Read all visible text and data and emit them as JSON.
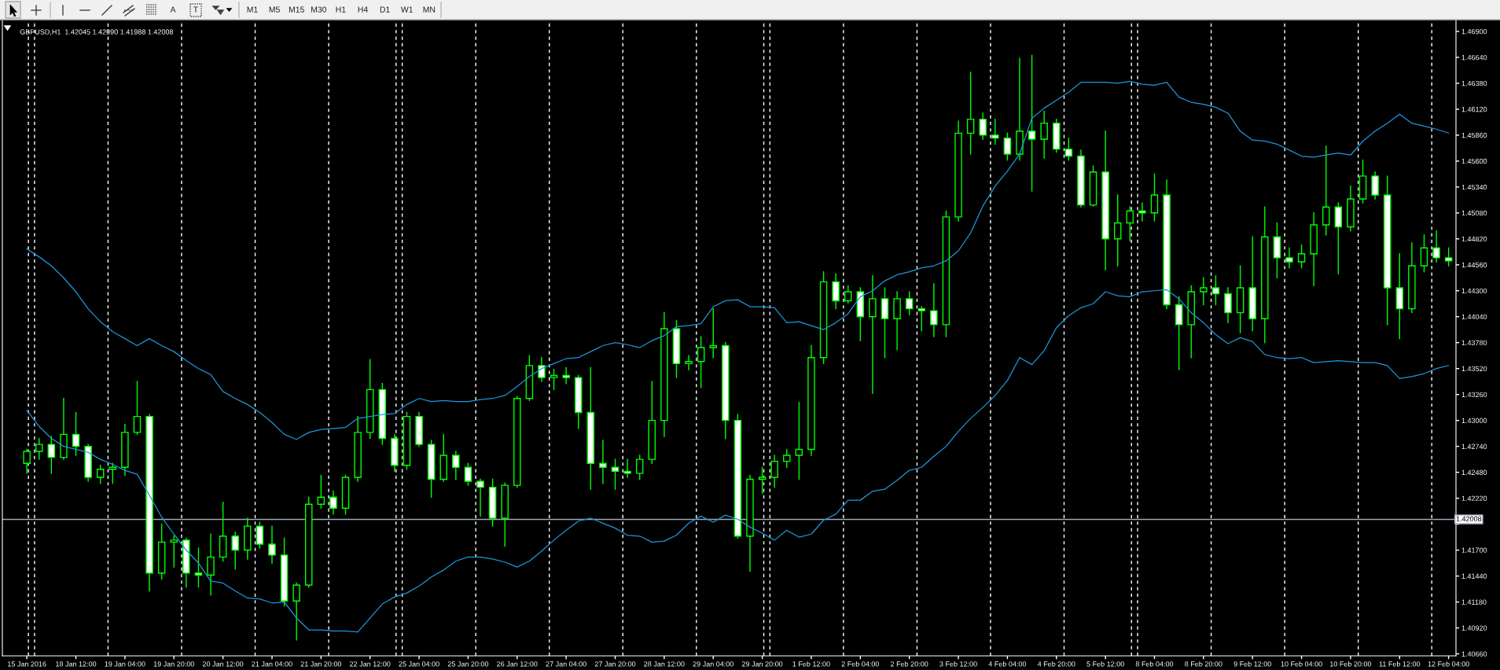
{
  "chart_data": {
    "type": "candlestick",
    "title": "GBPUSD,H1  1.42045 1.42090 1.41988 1.42008",
    "categories": [
      "15 Jan 2016",
      null,
      null,
      null,
      "18 Jan 12:00",
      null,
      null,
      null,
      "19 Jan 04:00",
      null,
      null,
      null,
      "19 Jan 20:00",
      null,
      null,
      null,
      "20 Jan 12:00",
      null,
      null,
      null,
      "21 Jan 04:00",
      null,
      null,
      null,
      "21 Jan 20:00",
      null,
      null,
      null,
      "22 Jan 12:00",
      null,
      null,
      null,
      "25 Jan 04:00",
      null,
      null,
      null,
      "25 Jan 20:00",
      null,
      null,
      null,
      "26 Jan 12:00",
      null,
      null,
      null,
      "27 Jan 04:00",
      null,
      null,
      null,
      "27 Jan 20:00",
      null,
      null,
      null,
      "28 Jan 12:00",
      null,
      null,
      null,
      "29 Jan 04:00",
      null,
      null,
      null,
      "29 Jan 20:00",
      null,
      null,
      null,
      "1 Feb 12:00",
      null,
      null,
      null,
      "2 Feb 04:00",
      null,
      null,
      null,
      "2 Feb 20:00",
      null,
      null,
      null,
      "3 Feb 12:00",
      null,
      null,
      null,
      "4 Feb 04:00",
      null,
      null,
      null,
      "4 Feb 20:00",
      null,
      null,
      null,
      "5 Feb 12:00",
      null,
      null,
      null,
      "8 Feb 04:00",
      null,
      null,
      null,
      "8 Feb 20:00",
      null,
      null,
      null,
      "9 Feb 12:00",
      null,
      null,
      null,
      "10 Feb 04:00",
      null,
      null,
      null,
      "10 Feb 20:00",
      null,
      null,
      null,
      "11 Feb 12:00",
      null,
      null,
      null,
      "12 Feb 04:00"
    ],
    "ohlc": [
      [
        1.4257,
        1.4271,
        1.4247,
        1.4269
      ],
      [
        1.4269,
        1.4282,
        1.4261,
        1.4276
      ],
      [
        1.4276,
        1.4284,
        1.4247,
        1.4263
      ],
      [
        1.4263,
        1.4322,
        1.4261,
        1.4286
      ],
      [
        1.4286,
        1.4308,
        1.4265,
        1.4274
      ],
      [
        1.4274,
        1.4276,
        1.4239,
        1.4243
      ],
      [
        1.4243,
        1.4255,
        1.4237,
        1.4251
      ],
      [
        1.4251,
        1.4257,
        1.4237,
        1.4253
      ],
      [
        1.4253,
        1.4296,
        1.4245,
        1.4288
      ],
      [
        1.4288,
        1.4339,
        1.4286,
        1.4304
      ],
      [
        1.4304,
        1.4306,
        1.4129,
        1.4147
      ],
      [
        1.4147,
        1.4196,
        1.4141,
        1.4178
      ],
      [
        1.4178,
        1.4184,
        1.4153,
        1.418
      ],
      [
        1.418,
        1.4182,
        1.4133,
        1.4147
      ],
      [
        1.4147,
        1.4172,
        1.4133,
        1.4145
      ],
      [
        1.4145,
        1.4186,
        1.4125,
        1.4163
      ],
      [
        1.4163,
        1.4218,
        1.4159,
        1.4184
      ],
      [
        1.4184,
        1.4188,
        1.4151,
        1.417
      ],
      [
        1.417,
        1.4202,
        1.4161,
        1.4194
      ],
      [
        1.4194,
        1.4198,
        1.4172,
        1.4176
      ],
      [
        1.4176,
        1.4194,
        1.4157,
        1.4165
      ],
      [
        1.4165,
        1.4182,
        1.4114,
        1.4119
      ],
      [
        1.4119,
        1.4137,
        1.408,
        1.4135
      ],
      [
        1.4135,
        1.4223,
        1.4133,
        1.4216
      ],
      [
        1.4216,
        1.4245,
        1.4212,
        1.4223
      ],
      [
        1.4223,
        1.4229,
        1.4206,
        1.4212
      ],
      [
        1.4212,
        1.4245,
        1.4206,
        1.4243
      ],
      [
        1.4243,
        1.4304,
        1.4239,
        1.4288
      ],
      [
        1.4288,
        1.4361,
        1.4282,
        1.4331
      ],
      [
        1.4331,
        1.4337,
        1.4276,
        1.4282
      ],
      [
        1.4282,
        1.4286,
        1.4249,
        1.4255
      ],
      [
        1.4255,
        1.4308,
        1.4251,
        1.4304
      ],
      [
        1.4304,
        1.4308,
        1.4274,
        1.4276
      ],
      [
        1.4276,
        1.428,
        1.4223,
        1.4241
      ],
      [
        1.4241,
        1.4286,
        1.4239,
        1.4265
      ],
      [
        1.4265,
        1.4269,
        1.4241,
        1.4253
      ],
      [
        1.4253,
        1.4257,
        1.4235,
        1.4239
      ],
      [
        1.4239,
        1.4241,
        1.4204,
        1.4233
      ],
      [
        1.4233,
        1.4241,
        1.4194,
        1.4202
      ],
      [
        1.4202,
        1.4237,
        1.4174,
        1.4235
      ],
      [
        1.4235,
        1.4324,
        1.4233,
        1.4322
      ],
      [
        1.4322,
        1.4365,
        1.432,
        1.4355
      ],
      [
        1.4355,
        1.4363,
        1.4339,
        1.4343
      ],
      [
        1.4343,
        1.4351,
        1.4331,
        1.4345
      ],
      [
        1.4345,
        1.4353,
        1.4337,
        1.4343
      ],
      [
        1.4343,
        1.4345,
        1.4292,
        1.4308
      ],
      [
        1.4308,
        1.4353,
        1.4231,
        1.4257
      ],
      [
        1.4257,
        1.428,
        1.4237,
        1.4253
      ],
      [
        1.4253,
        1.4261,
        1.4231,
        1.4249
      ],
      [
        1.4249,
        1.4261,
        1.4243,
        1.4247
      ],
      [
        1.4247,
        1.4265,
        1.4241,
        1.4261
      ],
      [
        1.4261,
        1.4339,
        1.4257,
        1.43
      ],
      [
        1.43,
        1.4408,
        1.4284,
        1.4392
      ],
      [
        1.4392,
        1.44,
        1.4343,
        1.4357
      ],
      [
        1.4357,
        1.4365,
        1.4351,
        1.4359
      ],
      [
        1.4359,
        1.4384,
        1.4333,
        1.4373
      ],
      [
        1.4373,
        1.4412,
        1.4363,
        1.4375
      ],
      [
        1.4375,
        1.4378,
        1.4282,
        1.43
      ],
      [
        1.43,
        1.4306,
        1.4182,
        1.4184
      ],
      [
        1.4184,
        1.4245,
        1.4149,
        1.4241
      ],
      [
        1.4241,
        1.4253,
        1.4227,
        1.4243
      ],
      [
        1.4243,
        1.4265,
        1.4233,
        1.4259
      ],
      [
        1.4259,
        1.4271,
        1.4253,
        1.4265
      ],
      [
        1.4265,
        1.4318,
        1.4241,
        1.4271
      ],
      [
        1.4271,
        1.4375,
        1.4265,
        1.4363
      ],
      [
        1.4363,
        1.4449,
        1.4357,
        1.4439
      ],
      [
        1.4439,
        1.4447,
        1.4412,
        1.442
      ],
      [
        1.442,
        1.4435,
        1.4418,
        1.4429
      ],
      [
        1.4429,
        1.4433,
        1.438,
        1.4404
      ],
      [
        1.4404,
        1.4445,
        1.4327,
        1.4422
      ],
      [
        1.4422,
        1.4433,
        1.4363,
        1.4402
      ],
      [
        1.4402,
        1.4429,
        1.4371,
        1.4422
      ],
      [
        1.4422,
        1.4429,
        1.4406,
        1.4412
      ],
      [
        1.4412,
        1.4414,
        1.439,
        1.441
      ],
      [
        1.441,
        1.4437,
        1.4384,
        1.4396
      ],
      [
        1.4396,
        1.451,
        1.4384,
        1.4504
      ],
      [
        1.4504,
        1.46,
        1.45,
        1.4588
      ],
      [
        1.4588,
        1.4649,
        1.4567,
        1.4602
      ],
      [
        1.4602,
        1.4608,
        1.4582,
        1.4586
      ],
      [
        1.4586,
        1.4602,
        1.4577,
        1.4583
      ],
      [
        1.4583,
        1.4588,
        1.4561,
        1.4567
      ],
      [
        1.4567,
        1.4663,
        1.4561,
        1.459
      ],
      [
        1.459,
        1.4666,
        1.453,
        1.4582
      ],
      [
        1.4582,
        1.461,
        1.4563,
        1.4598
      ],
      [
        1.4598,
        1.4602,
        1.4569,
        1.4572
      ],
      [
        1.4572,
        1.4583,
        1.4561,
        1.4565
      ],
      [
        1.4565,
        1.4571,
        1.4514,
        1.4516
      ],
      [
        1.4516,
        1.4555,
        1.4515,
        1.4549
      ],
      [
        1.4549,
        1.459,
        1.4451,
        1.4482
      ],
      [
        1.4482,
        1.4526,
        1.4455,
        1.4498
      ],
      [
        1.4498,
        1.4514,
        1.448,
        1.451
      ],
      [
        1.451,
        1.4518,
        1.45,
        1.4508
      ],
      [
        1.4508,
        1.4547,
        1.45,
        1.4526
      ],
      [
        1.4526,
        1.4541,
        1.4412,
        1.4416
      ],
      [
        1.4416,
        1.4424,
        1.4351,
        1.4396
      ],
      [
        1.4396,
        1.4435,
        1.4363,
        1.4429
      ],
      [
        1.4429,
        1.4443,
        1.4416,
        1.4433
      ],
      [
        1.4433,
        1.4445,
        1.4416,
        1.4427
      ],
      [
        1.4427,
        1.4433,
        1.4398,
        1.4408
      ],
      [
        1.4408,
        1.4455,
        1.4388,
        1.4433
      ],
      [
        1.4433,
        1.4484,
        1.439,
        1.4402
      ],
      [
        1.4402,
        1.4514,
        1.4378,
        1.4484
      ],
      [
        1.4484,
        1.4498,
        1.4443,
        1.4463
      ],
      [
        1.4463,
        1.4473,
        1.4453,
        1.4459
      ],
      [
        1.4459,
        1.4476,
        1.4453,
        1.4467
      ],
      [
        1.4467,
        1.4508,
        1.4435,
        1.4496
      ],
      [
        1.4496,
        1.4575,
        1.4486,
        1.4514
      ],
      [
        1.4514,
        1.4518,
        1.4447,
        1.4494
      ],
      [
        1.4494,
        1.4535,
        1.449,
        1.4522
      ],
      [
        1.4522,
        1.4561,
        1.4518,
        1.4545
      ],
      [
        1.4545,
        1.4549,
        1.4522,
        1.4526
      ],
      [
        1.4526,
        1.4545,
        1.4396,
        1.4433
      ],
      [
        1.4433,
        1.4467,
        1.4382,
        1.4412
      ],
      [
        1.4412,
        1.4478,
        1.4408,
        1.4455
      ],
      [
        1.4455,
        1.4486,
        1.4449,
        1.4473
      ],
      [
        1.4473,
        1.449,
        1.4459,
        1.4463
      ],
      [
        1.4463,
        1.4473,
        1.4455,
        1.446
      ]
    ],
    "color": "#00ff00",
    "colors": [
      "#000000",
      "#000000",
      "#ffffff",
      "#000000",
      "#ffffff",
      "#ffffff",
      "#000000",
      "#000000",
      "#000000",
      "#000000",
      "#ffffff",
      "#000000",
      "#000000",
      "#ffffff",
      "#ffffff",
      "#000000",
      "#000000",
      "#ffffff",
      "#000000",
      "#ffffff",
      "#ffffff",
      "#ffffff",
      "#000000",
      "#000000",
      "#000000",
      "#ffffff",
      "#000000",
      "#000000",
      "#000000",
      "#ffffff",
      "#ffffff",
      "#000000",
      "#ffffff",
      "#ffffff",
      "#000000",
      "#ffffff",
      "#ffffff",
      "#ffffff",
      "#ffffff",
      "#000000",
      "#000000",
      "#000000",
      "#ffffff",
      "#000000",
      "#ffffff",
      "#ffffff",
      "#ffffff",
      "#ffffff",
      "#ffffff",
      "#ffffff",
      "#000000",
      "#000000",
      "#000000",
      "#ffffff",
      "#000000",
      "#000000",
      "#000000",
      "#ffffff",
      "#ffffff",
      "#000000",
      "#000000",
      "#000000",
      "#000000",
      "#000000",
      "#000000",
      "#000000",
      "#ffffff",
      "#000000",
      "#ffffff",
      "#000000",
      "#ffffff",
      "#000000",
      "#ffffff",
      "#ffffff",
      "#ffffff",
      "#000000",
      "#000000",
      "#000000",
      "#ffffff",
      "#ffffff",
      "#ffffff",
      "#000000",
      "#ffffff",
      "#000000",
      "#ffffff",
      "#ffffff",
      "#ffffff",
      "#000000",
      "#ffffff",
      "#000000",
      "#000000",
      "#ffffff",
      "#000000",
      "#ffffff",
      "#ffffff",
      "#000000",
      "#000000",
      "#ffffff",
      "#ffffff",
      "#000000",
      "#ffffff",
      "#000000",
      "#ffffff",
      "#ffffff",
      "#000000",
      "#000000",
      "#000000",
      "#ffffff",
      "#000000",
      "#000000",
      "#ffffff",
      "#ffffff",
      "#ffffff",
      "#000000",
      "#000000",
      "#ffffff",
      "#ffffff"
    ],
    "series": [
      {
        "type": "line",
        "color": "#1e96dc",
        "values": [
          1.4472,
          1.4464,
          1.4455,
          1.4443,
          1.4429,
          1.4412,
          1.4399,
          1.4389,
          1.4382,
          1.4375,
          1.4382,
          1.4375,
          1.4369,
          1.436,
          1.4352,
          1.4346,
          1.4329,
          1.4322,
          1.4316,
          1.4308,
          1.4298,
          1.4286,
          1.4281,
          1.4288,
          1.4291,
          1.4292,
          1.4293,
          1.4302,
          1.4304,
          1.4306,
          1.4307,
          1.4316,
          1.4322,
          1.4319,
          1.432,
          1.4319,
          1.4319,
          1.4321,
          1.4322,
          1.4325,
          1.4334,
          1.4344,
          1.4352,
          1.4357,
          1.4362,
          1.4363,
          1.4369,
          1.4375,
          1.4378,
          1.4376,
          1.4373,
          1.438,
          1.4385,
          1.4394,
          1.4395,
          1.4397,
          1.4414,
          1.442,
          1.4421,
          1.4414,
          1.4414,
          1.4413,
          1.4398,
          1.4399,
          1.4395,
          1.4391,
          1.4398,
          1.4407,
          1.4424,
          1.443,
          1.444,
          1.4446,
          1.4449,
          1.4453,
          1.4455,
          1.446,
          1.447,
          1.4488,
          1.4515,
          1.4535,
          1.455,
          1.4567,
          1.4603,
          1.4613,
          1.4621,
          1.4629,
          1.4639,
          1.4639,
          1.4639,
          1.4638,
          1.464,
          1.4637,
          1.4636,
          1.4639,
          1.4624,
          1.4619,
          1.4617,
          1.4614,
          1.4608,
          1.459,
          1.4581,
          1.458,
          1.4577,
          1.4571,
          1.4565,
          1.4564,
          1.4566,
          1.4568,
          1.4566,
          1.458,
          1.459,
          1.4598,
          1.4607,
          1.4598,
          1.4595,
          1.4592,
          1.4588
        ]
      },
      {
        "type": "line",
        "color": "#1e96dc",
        "values": [
          1.431,
          1.4294,
          1.4282,
          1.4274,
          1.4271,
          1.4268,
          1.4261,
          1.4256,
          1.425,
          1.4246,
          1.4225,
          1.4203,
          1.4186,
          1.417,
          1.4157,
          1.4139,
          1.4137,
          1.4129,
          1.4122,
          1.4121,
          1.4117,
          1.4118,
          1.4102,
          1.409,
          1.409,
          1.4089,
          1.4089,
          1.4088,
          1.4102,
          1.4116,
          1.4123,
          1.4127,
          1.4134,
          1.4143,
          1.415,
          1.4159,
          1.4163,
          1.4163,
          1.4161,
          1.4158,
          1.4153,
          1.4159,
          1.4169,
          1.418,
          1.419,
          1.4199,
          1.4202,
          1.4197,
          1.4192,
          1.4185,
          1.4184,
          1.4178,
          1.4179,
          1.4185,
          1.4197,
          1.4204,
          1.4198,
          1.4205,
          1.4201,
          1.4193,
          1.4187,
          1.418,
          1.419,
          1.4183,
          1.4186,
          1.42,
          1.4206,
          1.422,
          1.422,
          1.4229,
          1.4231,
          1.424,
          1.425,
          1.4253,
          1.4264,
          1.4274,
          1.4289,
          1.4302,
          1.4313,
          1.4325,
          1.434,
          1.4363,
          1.4356,
          1.437,
          1.4393,
          1.4405,
          1.4413,
          1.4417,
          1.4429,
          1.4425,
          1.4424,
          1.4429,
          1.443,
          1.4431,
          1.4422,
          1.4408,
          1.4398,
          1.4386,
          1.4377,
          1.4383,
          1.4379,
          1.4366,
          1.4363,
          1.4362,
          1.4363,
          1.4358,
          1.4359,
          1.436,
          1.4359,
          1.4358,
          1.4358,
          1.4355,
          1.4342,
          1.4344,
          1.4347,
          1.4352,
          1.4355
        ]
      }
    ],
    "ylim": [
      1.4064,
      1.4701
    ],
    "yticks": [
      {
        "value": 1.469,
        "label": "1.46900"
      },
      {
        "value": 1.4664,
        "label": "1.46640"
      },
      {
        "value": 1.4638,
        "label": "1.46380"
      },
      {
        "value": 1.4612,
        "label": "1.46120"
      },
      {
        "value": 1.4586,
        "label": "1.45860"
      },
      {
        "value": 1.456,
        "label": "1.45600"
      },
      {
        "value": 1.4534,
        "label": "1.45340"
      },
      {
        "value": 1.4508,
        "label": "1.45080"
      },
      {
        "value": 1.4482,
        "label": "1.44820"
      },
      {
        "value": 1.4456,
        "label": "1.44560"
      },
      {
        "value": 1.443,
        "label": "1.44300"
      },
      {
        "value": 1.4404,
        "label": "1.44040"
      },
      {
        "value": 1.4378,
        "label": "1.43780"
      },
      {
        "value": 1.4352,
        "label": "1.43520"
      },
      {
        "value": 1.4326,
        "label": "1.43260"
      },
      {
        "value": 1.43,
        "label": "1.43000"
      },
      {
        "value": 1.4274,
        "label": "1.42740"
      },
      {
        "value": 1.4248,
        "label": "1.42480"
      },
      {
        "value": 1.4222,
        "label": "1.42220"
      },
      {
        "value": 1.4196,
        "label": null
      },
      {
        "value": 1.417,
        "label": "1.41700"
      },
      {
        "value": 1.4144,
        "label": "1.41440"
      },
      {
        "value": 1.4118,
        "label": "1.41180"
      },
      {
        "value": 1.4092,
        "label": "1.40920"
      },
      {
        "value": 1.4066,
        "label": "1.40660"
      }
    ],
    "ref_lines": [
      {
        "axis": "y",
        "value": 1.42008,
        "label": "1.42008",
        "color": "#a0a8b4"
      }
    ],
    "annotations": [
      "A",
      "T",
      "M1",
      "M5",
      "M15",
      "M30",
      "H1",
      "H4",
      "D1",
      "W1",
      "MN"
    ]
  }
}
